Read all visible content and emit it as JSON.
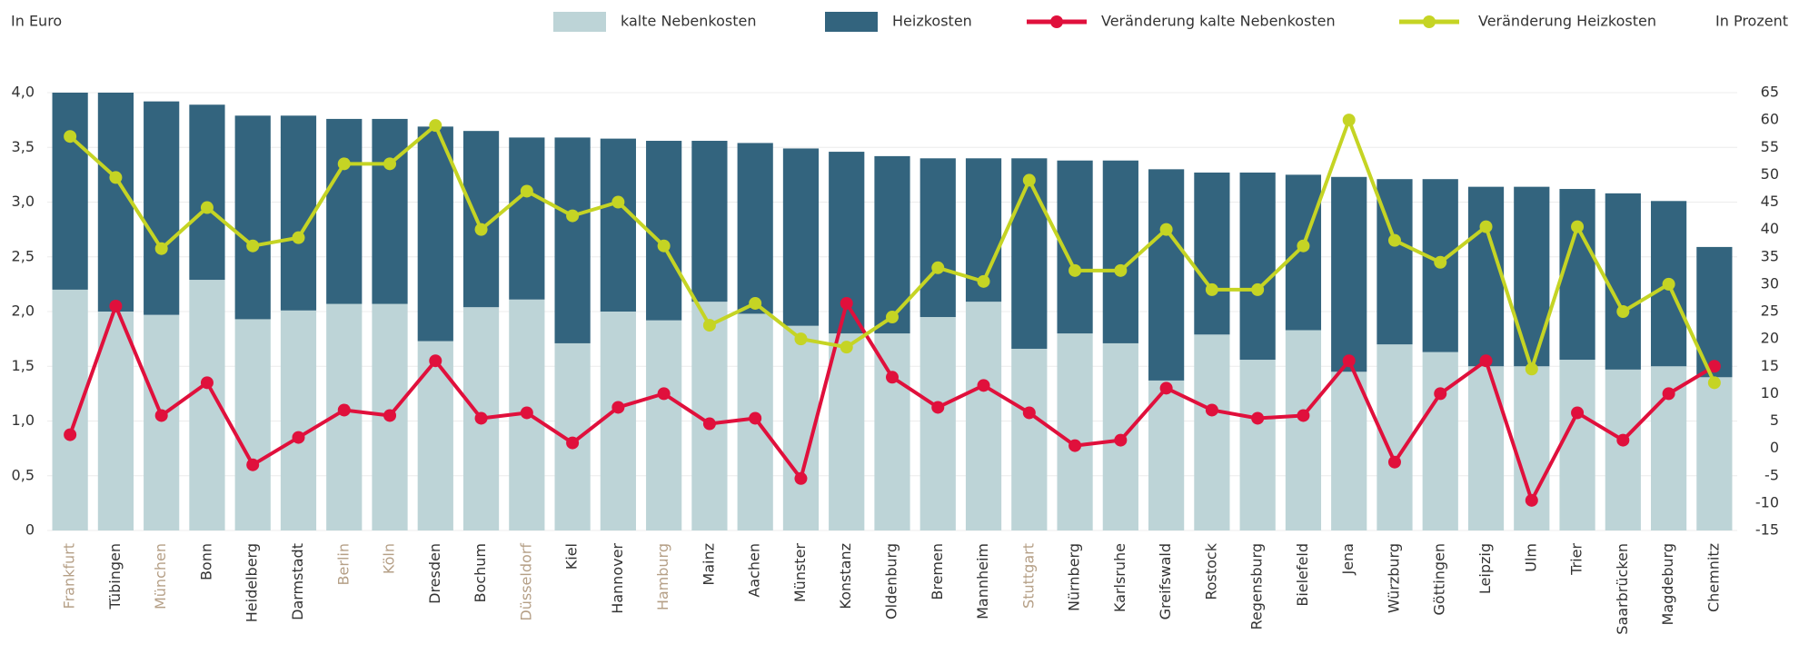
{
  "chart_data": {
    "type": "bar_line",
    "y_label": "In Euro",
    "y2_label": "In Prozent",
    "categories": [
      "Frankfurt",
      "Tübingen",
      "München",
      "Bonn",
      "Heidelberg",
      "Darmstadt",
      "Berlin",
      "Köln",
      "Dresden",
      "Bochum",
      "Düsseldorf",
      "Kiel",
      "Hannover",
      "Hamburg",
      "Mainz",
      "Aachen",
      "Münster",
      "Konstanz",
      "Oldenburg",
      "Bremen",
      "Mannheim",
      "Stuttgart",
      "Nürnberg",
      "Karlsruhe",
      "Greifswald",
      "Rostock",
      "Regensburg",
      "Bielefeld",
      "Jena",
      "Würzburg",
      "Göttingen",
      "Leipzig",
      "Ulm",
      "Trier",
      "Saarbrücken",
      "Magdeburg",
      "Chemnitz"
    ],
    "category_label_colors": [
      "#b59f86",
      "#333333",
      "#b59f86",
      "#333333",
      "#333333",
      "#333333",
      "#b59f86",
      "#b59f86",
      "#333333",
      "#333333",
      "#b59f86",
      "#333333",
      "#333333",
      "#b59f86",
      "#333333",
      "#333333",
      "#333333",
      "#333333",
      "#333333",
      "#333333",
      "#333333",
      "#b59f86",
      "#333333",
      "#333333",
      "#333333",
      "#333333",
      "#333333",
      "#333333",
      "#333333",
      "#333333",
      "#333333",
      "#333333",
      "#333333",
      "#333333",
      "#333333",
      "#333333",
      "#333333"
    ],
    "series": [
      {
        "name": "kalte Nebenkosten",
        "kind": "bar",
        "color": "#bdd4d7",
        "values": [
          2.2,
          2.0,
          1.97,
          2.29,
          1.93,
          2.01,
          2.07,
          2.07,
          1.73,
          2.04,
          2.11,
          1.71,
          2.0,
          1.92,
          2.09,
          1.98,
          1.87,
          1.8,
          1.8,
          1.95,
          2.09,
          1.66,
          1.8,
          1.71,
          1.37,
          1.79,
          1.56,
          1.83,
          1.45,
          1.7,
          1.63,
          1.5,
          1.5,
          1.56,
          1.47,
          1.5,
          1.4
        ]
      },
      {
        "name": "Heizkosten",
        "kind": "bar",
        "color": "#33647e",
        "values": [
          1.8,
          2.0,
          1.95,
          1.6,
          1.86,
          1.78,
          1.69,
          1.69,
          1.96,
          1.61,
          1.48,
          1.88,
          1.58,
          1.64,
          1.47,
          1.56,
          1.62,
          1.66,
          1.62,
          1.45,
          1.31,
          1.74,
          1.58,
          1.67,
          1.93,
          1.48,
          1.71,
          1.42,
          1.78,
          1.51,
          1.58,
          1.64,
          1.64,
          1.56,
          1.61,
          1.51,
          1.19
        ]
      },
      {
        "name": "Veränderung kalte Nebenkosten",
        "kind": "line",
        "axis": "y2",
        "color": "#e0103c",
        "values": [
          2.5,
          26,
          6,
          12,
          -3,
          2,
          7,
          6,
          16,
          5.5,
          6.5,
          1,
          7.5,
          10,
          4.5,
          5.5,
          -5.5,
          26.5,
          13,
          7.5,
          11.5,
          6.5,
          0.5,
          1.5,
          11,
          7,
          5.5,
          6,
          16,
          -2.5,
          10,
          16,
          -9.5,
          6.5,
          1.5,
          10,
          15
        ]
      },
      {
        "name": "Veränderung Heizkosten",
        "kind": "line",
        "axis": "y2",
        "color": "#c5d424",
        "values": [
          57,
          49.5,
          36.5,
          44,
          37,
          38.5,
          52,
          52,
          59,
          40,
          47,
          42.5,
          45,
          37,
          22.5,
          26.5,
          20,
          18.5,
          24,
          33,
          30.5,
          49,
          32.5,
          32.5,
          40,
          29,
          29,
          37,
          60,
          38,
          34,
          40.5,
          14.5,
          40.5,
          25,
          30,
          12
        ]
      }
    ],
    "ylim": [
      0,
      4.0
    ],
    "yticks": [
      0,
      {
        "value": 0.5,
        "label": "0,5"
      },
      {
        "value": 1.0,
        "label": "1,0"
      },
      {
        "value": 1.5,
        "label": "1,5"
      },
      {
        "value": 2.0,
        "label": "2,0"
      },
      {
        "value": 2.5,
        "label": "2,5"
      },
      {
        "value": 3.0,
        "label": "3,0"
      },
      {
        "value": 3.5,
        "label": "3,5"
      },
      {
        "value": 4.0,
        "label": "4,0"
      }
    ],
    "y2lim": [
      -15,
      65
    ],
    "y2ticks": [
      -15,
      -10,
      -5,
      0,
      5,
      10,
      15,
      20,
      25,
      30,
      35,
      40,
      45,
      50,
      55,
      60,
      65
    ],
    "grid": true
  }
}
